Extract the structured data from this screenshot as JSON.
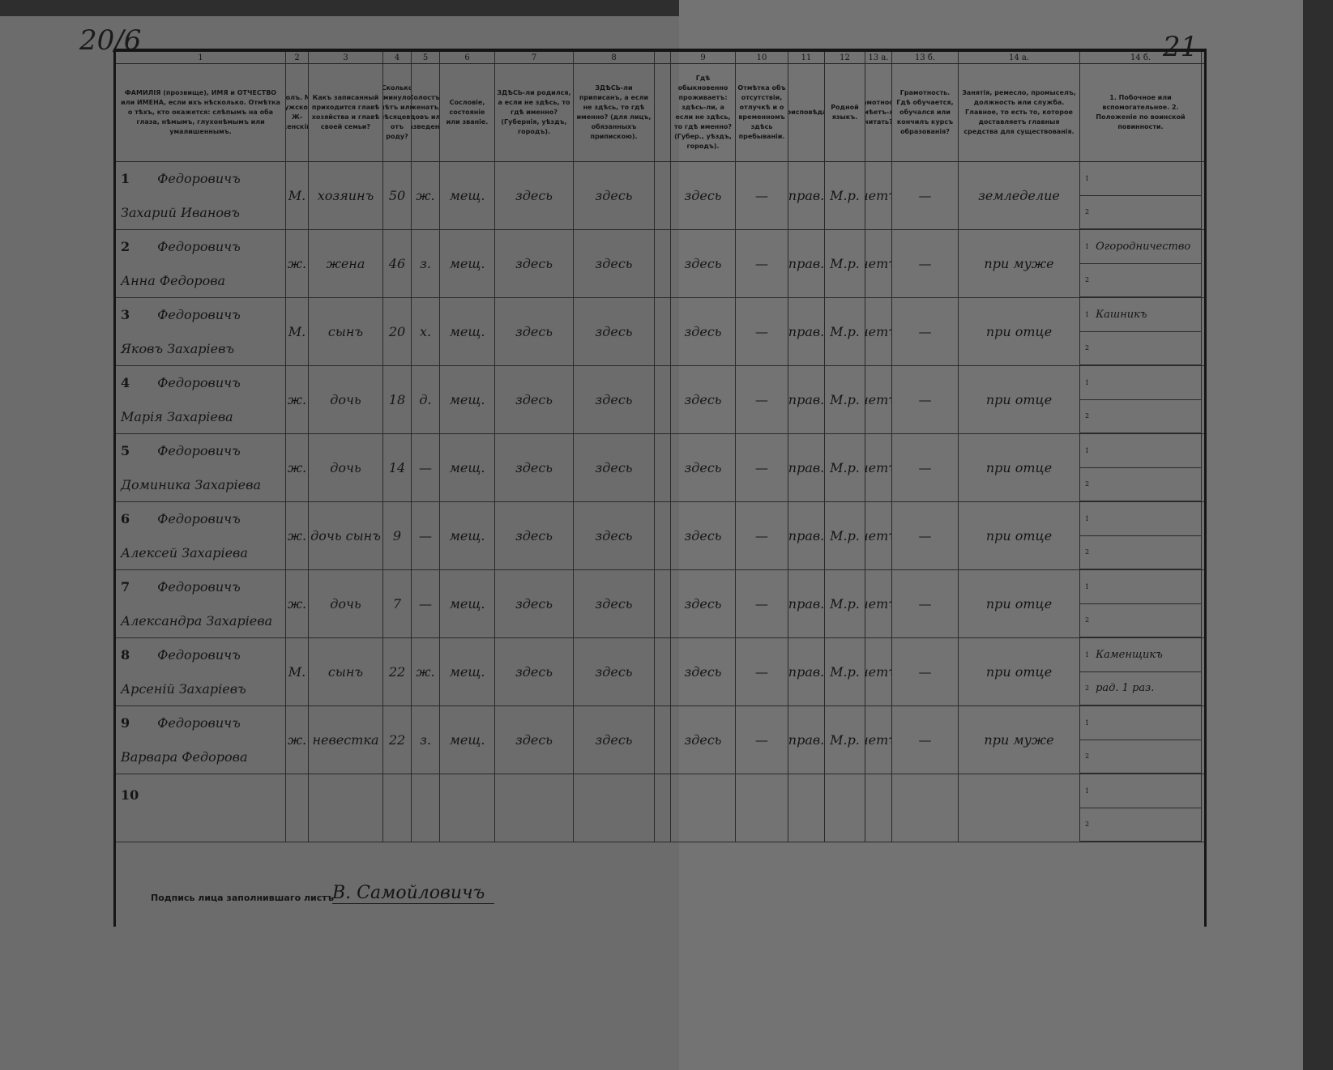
{
  "page_numbers": {
    "left": "20/6",
    "right": "21"
  },
  "column_numbers": [
    "1",
    "2",
    "3",
    "4",
    "5",
    "6",
    "7",
    "8",
    "",
    "9",
    "10",
    "11",
    "12",
    "13 а.",
    "13 б.",
    "14 а.",
    "14 б."
  ],
  "headers": [
    "ФАМИЛІЯ (прозвище), ИМЯ и ОТЧЕСТВО или ИМЕНА, если ихъ нѣсколько. Отмѣтка о тѣхъ, кто окажется: слѣпымъ на оба глаза, нѣмымъ, глухонѣмымъ или умалишеннымъ.",
    "Полъ. М-мужской. Ж-женскій.",
    "Какъ записанный приходится главѣ хозяйства и главѣ своей семьи?",
    "Сколько минуло лѣтъ или мѣсяцевъ отъ роду?",
    "Холостъ, женатъ, вдовъ или разведенъ.",
    "Сословіе, состояніе или званіе.",
    "ЗДѢСЬ-ли родился, а если не здѣсь, то гдѣ именно? (Губернія, уѣздъ, городъ).",
    "ЗДѢСЬ-ли приписанъ, а если не здѣсь, то гдѣ именно? (для лицъ, обязанныхъ припискою).",
    "",
    "Гдѣ обыкновенно проживаетъ: здѣсь-ли, а если не здѣсь, то гдѣ именно? (Губер., уѣздъ, городъ).",
    "Отмѣтка объ отсутствіи, отлучкѣ и о временномъ здѣсь пребываніи.",
    "Вѣроисповѣданіе.",
    "Родной языкъ.",
    "Грамотность. Умѣетъ-ли читать?",
    "Грамотность. Гдѣ обучается, обучался или кончилъ курсъ образованія?",
    "Занятія, ремесло, промыселъ, должность или служба. Главное, то есть то, которое доставляетъ главныя средства для существованія.",
    "1. Побочное или вспомогательное. 2. Положеніе по воинской повинности."
  ],
  "rows": [
    {
      "n": "1",
      "surname": "Федоровичъ",
      "name": "Захарий Ивановъ",
      "sex": "М.",
      "rel": "хозяинъ",
      "age": "50",
      "mar": "ж.",
      "estate": "мещ.",
      "born": "здесь",
      "reg": "здесь",
      "lives": "здесь",
      "absent": "—",
      "rel2": "прав.",
      "lang": "М.р.",
      "read": "нетъ",
      "edu": "—",
      "occ": "земледелие",
      "side1": "",
      "side2": ""
    },
    {
      "n": "2",
      "surname": "Федоровичъ",
      "name": "Анна Федорова",
      "sex": "ж.",
      "rel": "жена",
      "age": "46",
      "mar": "з.",
      "estate": "мещ.",
      "born": "здесь",
      "reg": "здесь",
      "lives": "здесь",
      "absent": "—",
      "rel2": "прав.",
      "lang": "М.р.",
      "read": "нетъ",
      "edu": "—",
      "occ": "при муже",
      "side1": "Огородничество",
      "side2": ""
    },
    {
      "n": "3",
      "surname": "Федоровичъ",
      "name": "Яковъ Захарiевъ",
      "sex": "М.",
      "rel": "сынъ",
      "age": "20",
      "mar": "х.",
      "estate": "мещ.",
      "born": "здесь",
      "reg": "здесь",
      "lives": "здесь",
      "absent": "—",
      "rel2": "прав.",
      "lang": "М.р.",
      "read": "нетъ",
      "edu": "—",
      "occ": "при отце",
      "side1": "Кашникъ",
      "side2": ""
    },
    {
      "n": "4",
      "surname": "Федоровичъ",
      "name": "Марiя Захарiева",
      "sex": "ж.",
      "rel": "дочь",
      "age": "18",
      "mar": "д.",
      "estate": "мещ.",
      "born": "здесь",
      "reg": "здесь",
      "lives": "здесь",
      "absent": "—",
      "rel2": "прав.",
      "lang": "М.р.",
      "read": "нетъ",
      "edu": "—",
      "occ": "при отце",
      "side1": "",
      "side2": ""
    },
    {
      "n": "5",
      "surname": "Федоровичъ",
      "name": "Доминика Захарiева",
      "sex": "ж.",
      "rel": "дочь",
      "age": "14",
      "mar": "—",
      "estate": "мещ.",
      "born": "здесь",
      "reg": "здесь",
      "lives": "здесь",
      "absent": "—",
      "rel2": "прав.",
      "lang": "М.р.",
      "read": "нетъ",
      "edu": "—",
      "occ": "при отце",
      "side1": "",
      "side2": ""
    },
    {
      "n": "6",
      "surname": "Федоровичъ",
      "name": "Алексей Захарiева",
      "sex": "ж.",
      "rel": "дочь сынъ",
      "age": "9",
      "mar": "—",
      "estate": "мещ.",
      "born": "здесь",
      "reg": "здесь",
      "lives": "здесь",
      "absent": "—",
      "rel2": "прав.",
      "lang": "М.р.",
      "read": "нетъ",
      "edu": "—",
      "occ": "при отце",
      "side1": "",
      "side2": ""
    },
    {
      "n": "7",
      "surname": "Федоровичъ",
      "name": "Александра Захарiева",
      "sex": "ж.",
      "rel": "дочь",
      "age": "7",
      "mar": "—",
      "estate": "мещ.",
      "born": "здесь",
      "reg": "здесь",
      "lives": "здесь",
      "absent": "—",
      "rel2": "прав.",
      "lang": "М.р.",
      "read": "нетъ",
      "edu": "—",
      "occ": "при отце",
      "side1": "",
      "side2": ""
    },
    {
      "n": "8",
      "surname": "Федоровичъ",
      "name": "Арсенiй Захарiевъ",
      "sex": "М.",
      "rel": "сынъ",
      "age": "22",
      "mar": "ж.",
      "estate": "мещ.",
      "born": "здесь",
      "reg": "здесь",
      "lives": "здесь",
      "absent": "—",
      "rel2": "прав.",
      "lang": "М.р.",
      "read": "нетъ",
      "edu": "—",
      "occ": "при отце",
      "side1": "Каменщикъ",
      "side2": "рад. 1 раз."
    },
    {
      "n": "9",
      "surname": "Федоровичъ",
      "name": "Варвара Федорова",
      "sex": "ж.",
      "rel": "невестка",
      "age": "22",
      "mar": "з.",
      "estate": "мещ.",
      "born": "здесь",
      "reg": "здесь",
      "lives": "здесь",
      "absent": "—",
      "rel2": "прав.",
      "lang": "М.р.",
      "read": "нетъ",
      "edu": "—",
      "occ": "при муже",
      "side1": "",
      "side2": ""
    },
    {
      "n": "10",
      "surname": "",
      "name": "",
      "sex": "",
      "rel": "",
      "age": "",
      "mar": "",
      "estate": "",
      "born": "",
      "reg": "",
      "lives": "",
      "absent": "",
      "rel2": "",
      "lang": "",
      "read": "",
      "edu": "",
      "occ": "",
      "side1": "",
      "side2": ""
    }
  ],
  "signature": {
    "label": "Подпись лица заполнившаго листъ",
    "value": "В. Самойловичъ"
  }
}
